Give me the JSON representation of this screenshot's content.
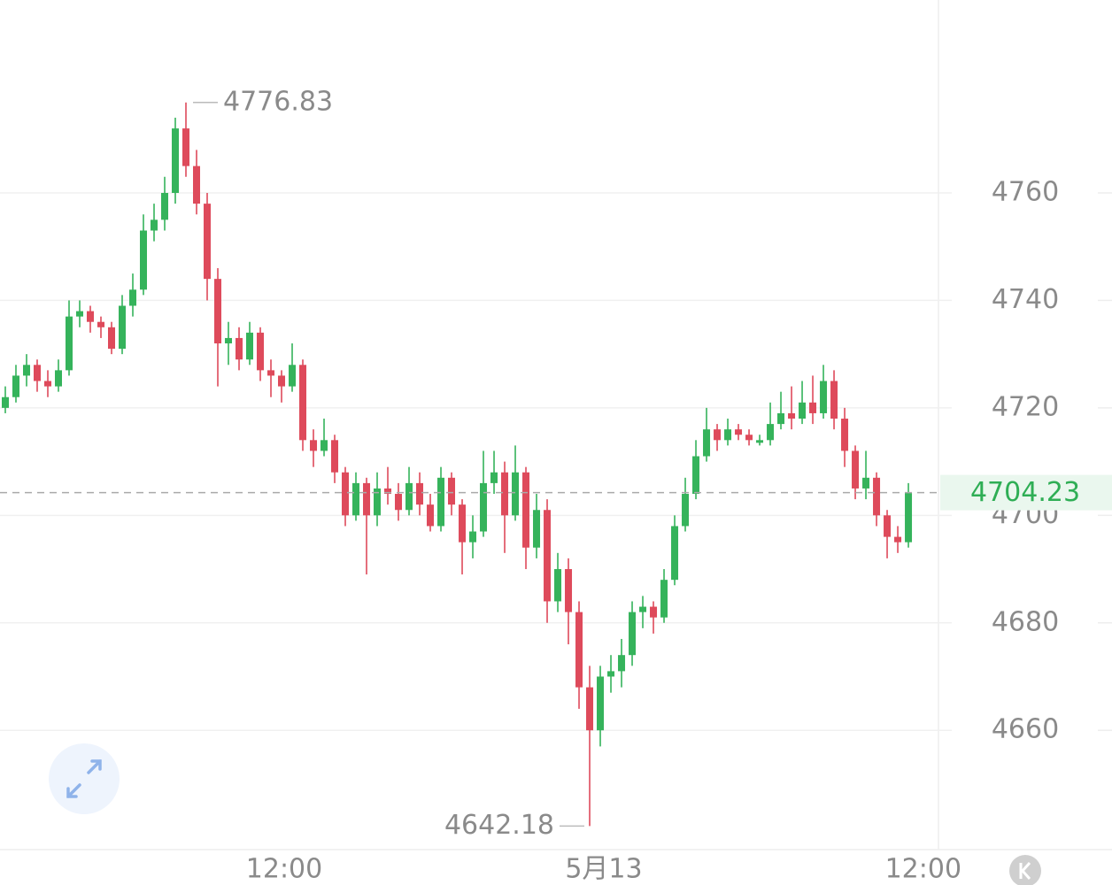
{
  "chart_data": {
    "type": "candlestick",
    "candles": [
      [
        4720,
        4724,
        4719,
        4722
      ],
      [
        4722,
        4728,
        4721,
        4726
      ],
      [
        4726,
        4730,
        4724,
        4728
      ],
      [
        4728,
        4729,
        4723,
        4725
      ],
      [
        4725,
        4727,
        4722,
        4724
      ],
      [
        4724,
        4729,
        4723,
        4727
      ],
      [
        4727,
        4740,
        4726,
        4737
      ],
      [
        4737,
        4740,
        4735,
        4738
      ],
      [
        4738,
        4739,
        4734,
        4736
      ],
      [
        4736,
        4737,
        4733,
        4735
      ],
      [
        4735,
        4736,
        4730,
        4731
      ],
      [
        4731,
        4741,
        4730,
        4739
      ],
      [
        4739,
        4745,
        4737,
        4742
      ],
      [
        4742,
        4756,
        4741,
        4753
      ],
      [
        4753,
        4758,
        4751,
        4755
      ],
      [
        4755,
        4763,
        4753,
        4760
      ],
      [
        4760,
        4774,
        4758,
        4772
      ],
      [
        4772,
        4776.83,
        4763,
        4765
      ],
      [
        4765,
        4768,
        4756,
        4758
      ],
      [
        4758,
        4760,
        4740,
        4744
      ],
      [
        4744,
        4746,
        4724,
        4732
      ],
      [
        4732,
        4736,
        4728,
        4733
      ],
      [
        4733,
        4735,
        4727,
        4729
      ],
      [
        4729,
        4736,
        4728,
        4734
      ],
      [
        4734,
        4735,
        4725,
        4727
      ],
      [
        4727,
        4729,
        4722,
        4726
      ],
      [
        4726,
        4727,
        4721,
        4724
      ],
      [
        4724,
        4732,
        4723,
        4728
      ],
      [
        4728,
        4729,
        4712,
        4714
      ],
      [
        4714,
        4716,
        4709,
        4712
      ],
      [
        4712,
        4718,
        4711,
        4714
      ],
      [
        4714,
        4715,
        4706,
        4708
      ],
      [
        4708,
        4709,
        4698,
        4700
      ],
      [
        4700,
        4708,
        4699,
        4706
      ],
      [
        4706,
        4707,
        4689,
        4700
      ],
      [
        4700,
        4708,
        4698,
        4705
      ],
      [
        4705,
        4709,
        4702,
        4704
      ],
      [
        4704,
        4706,
        4699,
        4701
      ],
      [
        4701,
        4709,
        4700,
        4706
      ],
      [
        4706,
        4708,
        4700,
        4702
      ],
      [
        4702,
        4704,
        4697,
        4698
      ],
      [
        4698,
        4709,
        4697,
        4707
      ],
      [
        4707,
        4708,
        4700,
        4702
      ],
      [
        4702,
        4703,
        4689,
        4695
      ],
      [
        4695,
        4700,
        4692,
        4697
      ],
      [
        4697,
        4712,
        4696,
        4706
      ],
      [
        4706,
        4712,
        4704,
        4708
      ],
      [
        4708,
        4710,
        4693,
        4700
      ],
      [
        4700,
        4713,
        4699,
        4708
      ],
      [
        4708,
        4709,
        4690,
        4694
      ],
      [
        4694,
        4704,
        4692,
        4701
      ],
      [
        4701,
        4703,
        4680,
        4684
      ],
      [
        4684,
        4693,
        4682,
        4690
      ],
      [
        4690,
        4692,
        4676,
        4682
      ],
      [
        4682,
        4684,
        4664,
        4668
      ],
      [
        4668,
        4672,
        4642.18,
        4660
      ],
      [
        4660,
        4672,
        4657,
        4670
      ],
      [
        4670,
        4674,
        4667,
        4671
      ],
      [
        4671,
        4677,
        4668,
        4674
      ],
      [
        4674,
        4684,
        4672,
        4682
      ],
      [
        4682,
        4685,
        4679,
        4683
      ],
      [
        4683,
        4684,
        4678,
        4681
      ],
      [
        4681,
        4690,
        4680,
        4688
      ],
      [
        4688,
        4700,
        4687,
        4698
      ],
      [
        4698,
        4707,
        4697,
        4704
      ],
      [
        4704,
        4714,
        4703,
        4711
      ],
      [
        4711,
        4720,
        4710,
        4716
      ],
      [
        4716,
        4717,
        4712,
        4714
      ],
      [
        4714,
        4718,
        4713,
        4716
      ],
      [
        4716,
        4717,
        4714,
        4715
      ],
      [
        4715,
        4716,
        4713,
        4714
      ],
      [
        4713.5,
        4715,
        4713,
        4714
      ],
      [
        4714,
        4721,
        4713,
        4717
      ],
      [
        4717,
        4723,
        4716,
        4719
      ],
      [
        4719,
        4724,
        4716,
        4718
      ],
      [
        4718,
        4725,
        4717,
        4721
      ],
      [
        4721,
        4726,
        4717,
        4719
      ],
      [
        4719,
        4728,
        4718,
        4725
      ],
      [
        4725,
        4727,
        4716,
        4718
      ],
      [
        4718,
        4720,
        4709,
        4712
      ],
      [
        4712,
        4713,
        4703,
        4705
      ],
      [
        4705,
        4712,
        4703,
        4707
      ],
      [
        4707,
        4708,
        4698,
        4700
      ],
      [
        4700,
        4701,
        4692,
        4696
      ],
      [
        4696,
        4698,
        4693,
        4695
      ],
      [
        4695,
        4706,
        4694,
        4704.23
      ]
    ],
    "xlim": [
      -0.5,
      87.83
    ],
    "xticks": [
      {
        "value": 26.25,
        "label": "12:00"
      },
      {
        "value": 56.33,
        "label": "5月13"
      },
      {
        "value": 86.4,
        "label": "12:00"
      }
    ],
    "ylim": [
      4637.8,
      4795.9
    ],
    "yticks": [
      4660,
      4680,
      4700,
      4720,
      4740,
      4760
    ],
    "grid": true,
    "up_color": "#35b35b",
    "down_color": "#de4a5b",
    "last_price_color": "#2fae55"
  }
}
